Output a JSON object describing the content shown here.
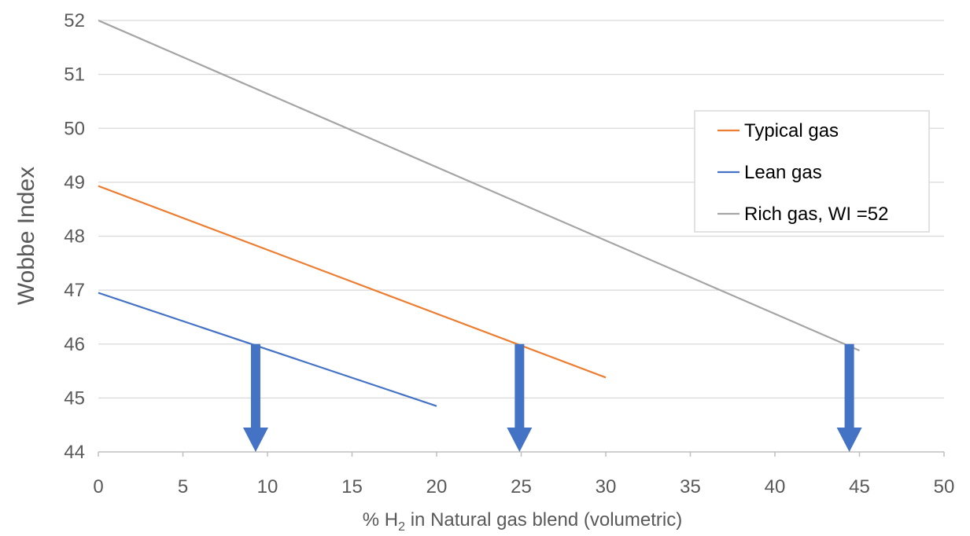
{
  "chart_data": {
    "type": "line",
    "xlabel_prefix": "% H",
    "xlabel_sub": "2",
    "xlabel_suffix": " in Natural gas blend (volumetric)",
    "ylabel": "Wobbe Index",
    "xlim": [
      0,
      50
    ],
    "ylim": [
      44,
      52
    ],
    "x_ticks": [
      0,
      5,
      10,
      15,
      20,
      25,
      30,
      35,
      40,
      45,
      50
    ],
    "y_ticks": [
      44,
      45,
      46,
      47,
      48,
      49,
      50,
      51,
      52
    ],
    "grid": "horizontal",
    "legend_position": "right",
    "series": [
      {
        "name": "Typical gas",
        "color": "#ED7D31",
        "x": [
          0,
          30
        ],
        "y": [
          48.93,
          45.38
        ]
      },
      {
        "name": "Lean gas",
        "color": "#4472C4",
        "x": [
          0,
          20
        ],
        "y": [
          46.95,
          44.85
        ]
      },
      {
        "name": "Rich gas, WI =52",
        "color": "#A5A5A5",
        "x": [
          0,
          45
        ],
        "y": [
          52.0,
          45.88
        ]
      }
    ],
    "annotations": [
      {
        "type": "arrow",
        "x": 9.3,
        "y_from": 46,
        "y_to": 44,
        "color": "#4472C4"
      },
      {
        "type": "arrow",
        "x": 24.9,
        "y_from": 46,
        "y_to": 44,
        "color": "#4472C4"
      },
      {
        "type": "arrow",
        "x": 44.4,
        "y_from": 46,
        "y_to": 44,
        "color": "#4472C4"
      }
    ]
  }
}
